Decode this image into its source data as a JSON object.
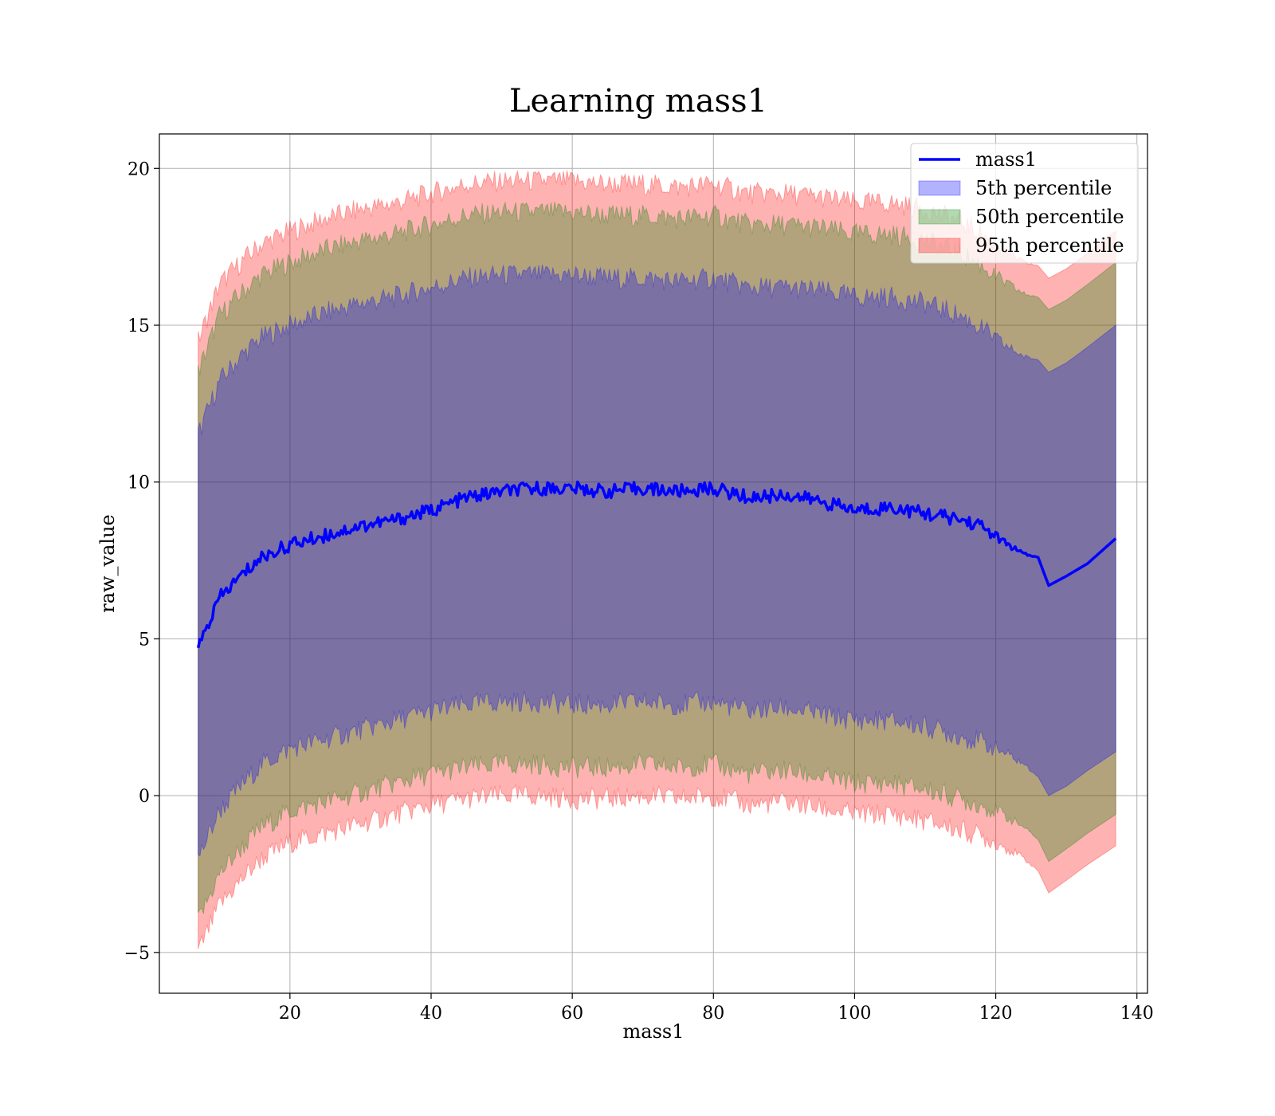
{
  "chart_data": {
    "type": "area",
    "title": "Learning mass1",
    "xlabel": "mass1",
    "ylabel": "raw_value",
    "xlim": [
      1.5,
      141.5
    ],
    "ylim": [
      -6.3,
      21.1
    ],
    "xticks": [
      20,
      40,
      60,
      80,
      100,
      120,
      140
    ],
    "yticks": [
      -5,
      0,
      5,
      10,
      15,
      20
    ],
    "xtick_labels": [
      "20",
      "40",
      "60",
      "80",
      "100",
      "120",
      "140"
    ],
    "ytick_labels": [
      "−5",
      "0",
      "5",
      "10",
      "15",
      "20"
    ],
    "grid": true,
    "legend_position": "top-right",
    "legend": [
      "mass1",
      "5th percentile",
      "50th percentile",
      "95th percentile"
    ],
    "x": [
      7,
      10,
      13,
      16,
      20,
      25,
      30,
      35,
      40,
      45,
      50,
      55,
      60,
      65,
      70,
      75,
      80,
      85,
      90,
      95,
      100,
      105,
      110,
      115,
      118,
      121,
      124,
      126,
      127.5,
      130,
      133,
      137
    ],
    "series": [
      {
        "name": "mass1",
        "kind": "line",
        "color": "#0000ff",
        "values": [
          4.7,
          6.3,
          7.0,
          7.6,
          8.0,
          8.3,
          8.6,
          8.8,
          9.1,
          9.5,
          9.7,
          9.8,
          9.8,
          9.7,
          9.8,
          9.7,
          9.8,
          9.5,
          9.6,
          9.4,
          9.1,
          9.2,
          9.0,
          8.8,
          8.6,
          8.1,
          7.7,
          7.6,
          6.7,
          7.0,
          7.4,
          8.2
        ]
      },
      {
        "name": "5th percentile",
        "kind": "band",
        "color": "#0000ff",
        "upper": [
          11.5,
          13.2,
          14.0,
          14.6,
          15.0,
          15.4,
          15.7,
          15.9,
          16.2,
          16.5,
          16.6,
          16.6,
          16.6,
          16.5,
          16.5,
          16.4,
          16.5,
          16.2,
          16.2,
          16.1,
          15.9,
          15.9,
          15.7,
          15.3,
          14.9,
          14.4,
          14.0,
          13.9,
          13.5,
          13.8,
          14.3,
          15.0
        ],
        "lower": [
          -2.0,
          -0.5,
          0.3,
          1.0,
          1.5,
          1.8,
          2.1,
          2.4,
          2.7,
          2.9,
          3.0,
          3.0,
          2.9,
          2.9,
          3.0,
          2.9,
          3.0,
          2.7,
          2.8,
          2.6,
          2.4,
          2.4,
          2.2,
          1.9,
          1.7,
          1.4,
          1.0,
          0.6,
          0.0,
          0.3,
          0.8,
          1.4
        ]
      },
      {
        "name": "50th percentile",
        "kind": "band",
        "color": "#008000",
        "upper": [
          13.5,
          15.3,
          16.0,
          16.6,
          17.0,
          17.4,
          17.7,
          17.9,
          18.2,
          18.5,
          18.6,
          18.6,
          18.6,
          18.5,
          18.5,
          18.4,
          18.5,
          18.2,
          18.2,
          18.1,
          17.9,
          17.9,
          17.7,
          17.3,
          16.9,
          16.4,
          16.0,
          15.9,
          15.5,
          15.8,
          16.3,
          17.0
        ],
        "lower": [
          -4.0,
          -2.5,
          -1.7,
          -1.0,
          -0.5,
          -0.2,
          0.1,
          0.4,
          0.7,
          0.9,
          1.0,
          1.0,
          0.9,
          0.9,
          1.0,
          0.9,
          1.0,
          0.7,
          0.8,
          0.6,
          0.4,
          0.4,
          0.2,
          -0.1,
          -0.3,
          -0.6,
          -1.0,
          -1.4,
          -2.1,
          -1.7,
          -1.2,
          -0.6
        ]
      },
      {
        "name": "95th percentile",
        "kind": "band",
        "color": "#ff0000",
        "upper": [
          14.5,
          16.3,
          17.0,
          17.6,
          18.0,
          18.4,
          18.7,
          18.9,
          19.2,
          19.5,
          19.6,
          19.6,
          19.6,
          19.5,
          19.5,
          19.4,
          19.5,
          19.2,
          19.2,
          19.1,
          18.9,
          18.9,
          18.7,
          18.3,
          17.9,
          17.4,
          17.0,
          16.9,
          16.5,
          16.8,
          17.3,
          18.0
        ],
        "lower": [
          -5.0,
          -3.5,
          -2.7,
          -2.0,
          -1.5,
          -1.2,
          -0.9,
          -0.6,
          -0.3,
          -0.1,
          0.0,
          0.0,
          -0.1,
          -0.1,
          0.0,
          -0.1,
          0.0,
          -0.3,
          -0.2,
          -0.4,
          -0.6,
          -0.6,
          -0.8,
          -1.1,
          -1.3,
          -1.6,
          -2.0,
          -2.4,
          -3.1,
          -2.7,
          -2.2,
          -1.6
        ]
      }
    ]
  }
}
